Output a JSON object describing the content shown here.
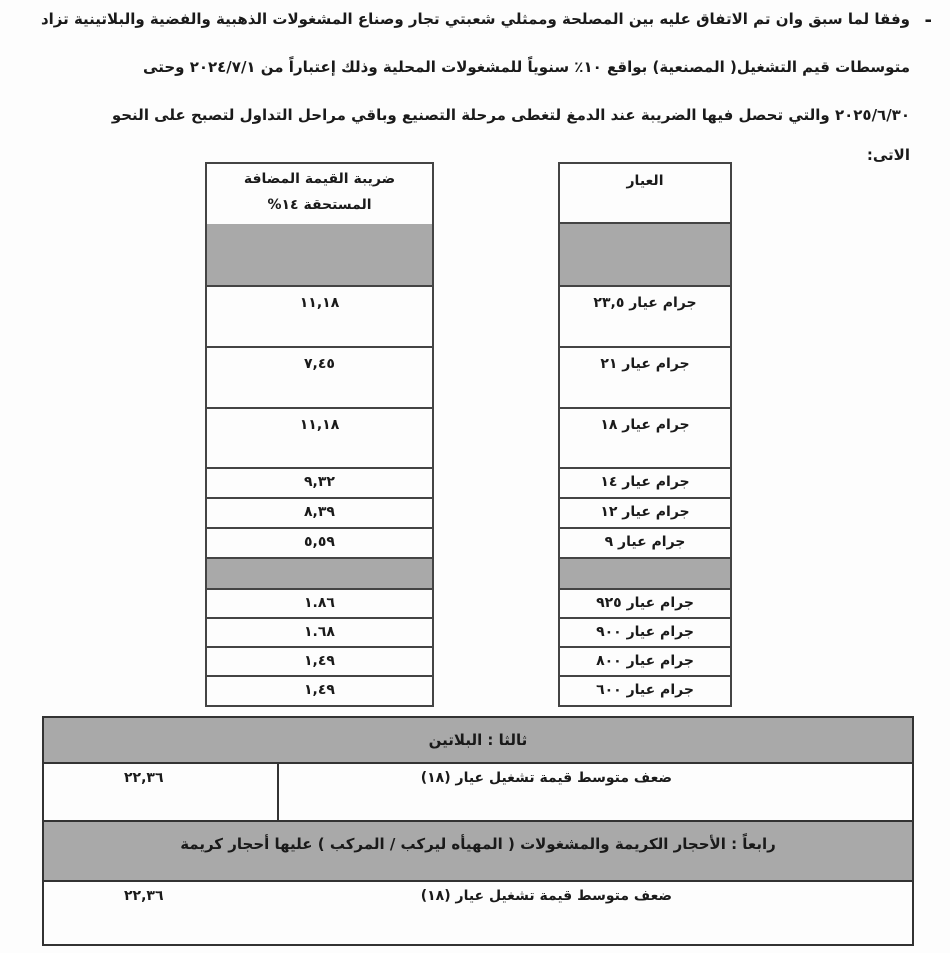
{
  "paragraph": {
    "bullet": "-",
    "lines": [
      "وفقا لما سبق وان تم الاتفاق عليه بين المصلحة وممثلي شعبتي تجار وصناع المشغولات الذهبية والفضية والبلاتينية تزاد",
      "متوسطات قيم التشغيل( المصنعية) بواقع ١٠٪ سنوياً للمشغولات المحلية وذلك إعتباراً من ٢٠٢٤/٧/١ وحتى",
      "٢٠٢٥/٦/٣٠ والتي تحصل فيها الضريبة عند الدمغ لتغطى مرحلة التصنيع وباقي مراحل التداول لتصبح على النحو",
      "الاتى:"
    ]
  },
  "table": {
    "header_karat": "العيار",
    "header_vat_line1": "ضريبة القيمة المضافة",
    "header_vat_line2": "المستحقة ١٤%",
    "rows": [
      {
        "karat": "",
        "vat": ""
      },
      {
        "karat": "جرام عيار ٢٣,٥",
        "vat": "١١,١٨"
      },
      {
        "karat": "جرام عيار ٢١",
        "vat": "٧,٤٥"
      },
      {
        "karat": "جرام عيار ١٨",
        "vat": "١١,١٨"
      },
      {
        "karat": "جرام عيار ١٤",
        "vat": "٩,٣٢"
      },
      {
        "karat": "جرام عيار ١٢",
        "vat": "٨,٣٩"
      },
      {
        "karat": "جرام عيار ٩",
        "vat": "٥,٥٩"
      },
      {
        "karat": "",
        "vat": ""
      },
      {
        "karat": "جرام عيار ٩٢٥",
        "vat": "١.٨٦"
      },
      {
        "karat": "جرام عيار ٩٠٠",
        "vat": "١.٦٨"
      },
      {
        "karat": "جرام عيار ٨٠٠",
        "vat": "١,٤٩"
      },
      {
        "karat": "جرام عيار ٦٠٠",
        "vat": "١,٤٩"
      }
    ]
  },
  "platinum": {
    "heading": "ثالثا : البلاتين",
    "label": "ضعف متوسط قيمة تشغيل عيار (١٨)",
    "value": "٢٢,٣٦"
  },
  "stones": {
    "heading": "رابعاً : الأحجار الكريمة والمشغولات ( المهيأه ليركب / المركب ) عليها أحجار كريمة",
    "label": "ضعف متوسط قيمة تشغيل عيار (١٨)",
    "value": "٢٢,٣٦"
  }
}
